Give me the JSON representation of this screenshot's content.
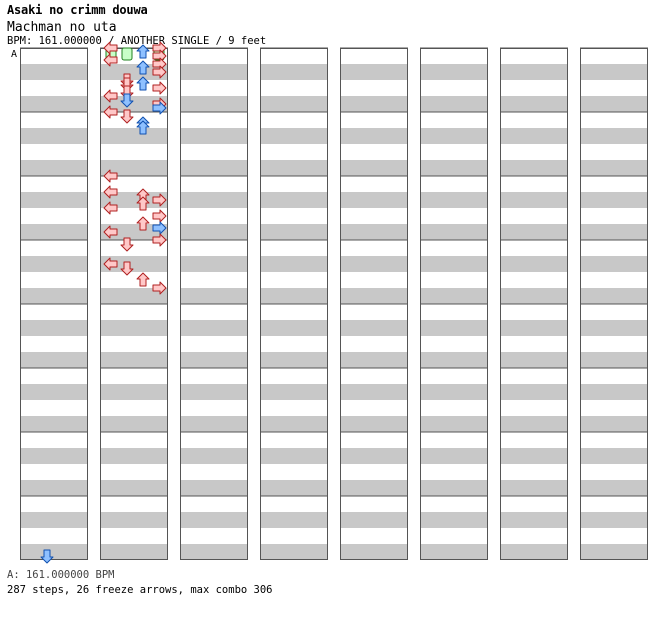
{
  "song": {
    "title": "Asaki no crimm douwa",
    "artist": "Machman no uta",
    "meta": "BPM: 161.000000 / ANOTHER SINGLE / 9 feet"
  },
  "marker_label": "A",
  "footer": {
    "bpm_line": "A: 161.000000 BPM",
    "summary": "287 steps, 26 freeze arrows, max combo 306"
  },
  "colors": {
    "row_gray": "#c8c8c8",
    "border": "#555555",
    "arrow_red_fill": "#ffc8c8",
    "arrow_red_stroke": "#b02020",
    "arrow_blue_fill": "#8ec0ff",
    "arrow_blue_stroke": "#1050b0",
    "freeze_fill": "#c8ffc8",
    "freeze_stroke": "#208020"
  },
  "chart_data": {
    "type": "step-chart",
    "lanes": [
      "L",
      "D",
      "U",
      "R"
    ],
    "columns": 8,
    "measures_per_column": 8,
    "beats_per_measure": 4,
    "note_legend": "beat is in 16th-note units from the chart start; blue = 8th-offset notes",
    "notes": [
      {
        "lane": "D",
        "beat": 127,
        "color": "blue"
      },
      {
        "lane": "L",
        "beat": 128
      },
      {
        "lane": "R",
        "beat": 128
      },
      {
        "lane": "U",
        "beat": 129,
        "color": "blue"
      },
      {
        "lane": "R",
        "beat": 130
      },
      {
        "lane": "L",
        "beat": 131
      },
      {
        "lane": "R",
        "beat": 132
      },
      {
        "lane": "U",
        "beat": 133,
        "color": "blue"
      },
      {
        "lane": "R",
        "beat": 134
      },
      {
        "lane": "D",
        "beat": 136
      },
      {
        "lane": "D",
        "beat": 137
      },
      {
        "lane": "U",
        "beat": 137,
        "color": "blue"
      },
      {
        "lane": "R",
        "beat": 138
      },
      {
        "lane": "D",
        "beat": 139
      },
      {
        "lane": "L",
        "beat": 140
      },
      {
        "lane": "D",
        "beat": 141,
        "color": "blue"
      },
      {
        "lane": "R",
        "beat": 142
      },
      {
        "lane": "R",
        "beat": 143,
        "color": "blue"
      },
      {
        "lane": "L",
        "beat": 144
      },
      {
        "lane": "D",
        "beat": 145
      },
      {
        "lane": "U",
        "beat": 147,
        "color": "blue"
      },
      {
        "lane": "U",
        "beat": 148,
        "color": "blue"
      },
      {
        "lane": "L",
        "beat": 160
      },
      {
        "lane": "L",
        "beat": 164
      },
      {
        "lane": "U",
        "beat": 165
      },
      {
        "lane": "R",
        "beat": 166
      },
      {
        "lane": "U",
        "beat": 167
      },
      {
        "lane": "L",
        "beat": 168
      },
      {
        "lane": "R",
        "beat": 170
      },
      {
        "lane": "U",
        "beat": 172
      },
      {
        "lane": "R",
        "beat": 173,
        "color": "blue"
      },
      {
        "lane": "L",
        "beat": 174
      },
      {
        "lane": "R",
        "beat": 176
      },
      {
        "lane": "D",
        "beat": 177
      },
      {
        "lane": "L",
        "beat": 182
      },
      {
        "lane": "D",
        "beat": 183
      },
      {
        "lane": "U",
        "beat": 186
      },
      {
        "lane": "R",
        "beat": 188
      }
    ],
    "freezes": [
      {
        "lane": "L",
        "start": 128,
        "end": 131
      },
      {
        "lane": "R",
        "start": 128,
        "end": 131
      },
      {
        "lane": "D",
        "start": 128,
        "end": 131
      }
    ]
  }
}
